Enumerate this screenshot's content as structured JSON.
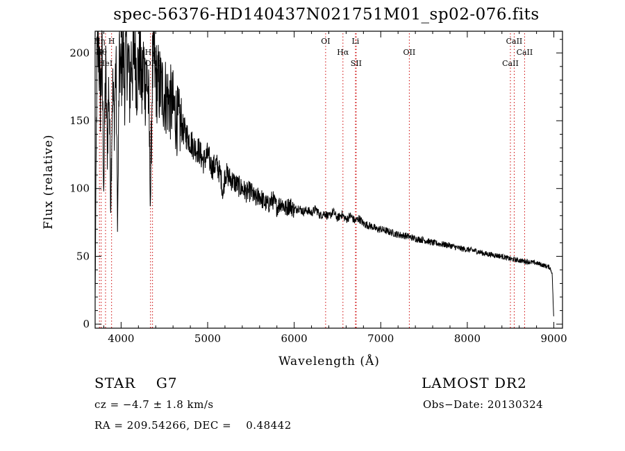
{
  "title": "spec-56376-HD140437N021751M01_sp02-076.fits",
  "info": {
    "object_type": "STAR    G7",
    "cz": "cz = −4.7 ± 1.8 km/s",
    "radec": "RA = 209.54266, DEC =    0.48442",
    "survey": "LAMOST DR2",
    "obs_date": "Obs−Date: 20130324"
  },
  "chart_data": {
    "type": "line",
    "title": "spec-56376-HD140437N021751M01_sp02-076.fits",
    "xlabel": "Wavelength (Å)",
    "ylabel": "Flux (relative)",
    "xlim": [
      3700,
      9100
    ],
    "ylim": [
      -3,
      216
    ],
    "x_ticks": [
      4000,
      5000,
      6000,
      7000,
      8000,
      9000
    ],
    "y_ticks": [
      0,
      50,
      100,
      150,
      200
    ],
    "line_color": "#000000",
    "marker_color": "#cc0000",
    "series": [
      {
        "x": [
          3700,
          3720,
          3740,
          3760,
          3780,
          3800,
          3820,
          3840,
          3860,
          3880,
          3900,
          3920,
          3940,
          3960,
          3980,
          4000,
          4020,
          4040,
          4060,
          4080,
          4100,
          4120,
          4140,
          4160,
          4180,
          4200,
          4220,
          4240,
          4260,
          4280,
          4300,
          4320,
          4340,
          4360,
          4380,
          4400,
          4450,
          4500,
          4550,
          4600,
          4650,
          4700,
          4750,
          4800,
          4850,
          4900,
          4950,
          5000,
          5050,
          5100,
          5150,
          5180,
          5200,
          5250,
          5300,
          5350,
          5400,
          5450,
          5500,
          5550,
          5600,
          5650,
          5700,
          5750,
          5800,
          5850,
          5900,
          5950,
          6000,
          6050,
          6100,
          6150,
          6200,
          6250,
          6300,
          6350,
          6400,
          6450,
          6500,
          6550,
          6600,
          6650,
          6700,
          6750,
          6800,
          6850,
          6900,
          6950,
          7000,
          7100,
          7200,
          7300,
          7400,
          7500,
          7600,
          7700,
          7800,
          7900,
          8000,
          8100,
          8200,
          8300,
          8400,
          8500,
          8600,
          8700,
          8800,
          8850,
          8900,
          8950,
          8980,
          9000
        ],
        "y": [
          20,
          185,
          210,
          165,
          195,
          100,
          190,
          130,
          180,
          90,
          175,
          150,
          195,
          70,
          200,
          180,
          210,
          175,
          205,
          195,
          170,
          200,
          185,
          210,
          180,
          190,
          200,
          170,
          195,
          175,
          185,
          160,
          90,
          185,
          195,
          180,
          175,
          170,
          165,
          160,
          150,
          145,
          140,
          135,
          130,
          128,
          120,
          125,
          115,
          118,
          110,
          95,
          112,
          108,
          105,
          102,
          100,
          97,
          98,
          92,
          95,
          90,
          88,
          92,
          86,
          90,
          85,
          88,
          84,
          86,
          83,
          84,
          82,
          85,
          80,
          82,
          79,
          83,
          78,
          81,
          77,
          80,
          76,
          78,
          74,
          73,
          72,
          70,
          70,
          68,
          66,
          65,
          63,
          62,
          60,
          59,
          58,
          56,
          55,
          54,
          52,
          51,
          50,
          48,
          47,
          46,
          45,
          44,
          43,
          42,
          38,
          2
        ]
      }
    ],
    "line_markers": [
      {
        "label": "Hη",
        "x": 3750
      },
      {
        "label": "Hθ",
        "x": 3770
      },
      {
        "label": "HeI",
        "x": 3820
      },
      {
        "label": "H",
        "x": 3890
      },
      {
        "label": "Hγ",
        "x": 4340
      },
      {
        "label": "OIII",
        "x": 4363
      },
      {
        "label": "OI",
        "x": 6363
      },
      {
        "label": "Hα",
        "x": 6563
      },
      {
        "label": "SII",
        "x": 6716
      },
      {
        "label": "Li",
        "x": 6708
      },
      {
        "label": "OII",
        "x": 7330
      },
      {
        "label": "CaII",
        "x": 8498
      },
      {
        "label": "CaII",
        "x": 8542
      },
      {
        "label": "CaII",
        "x": 8662
      }
    ]
  }
}
